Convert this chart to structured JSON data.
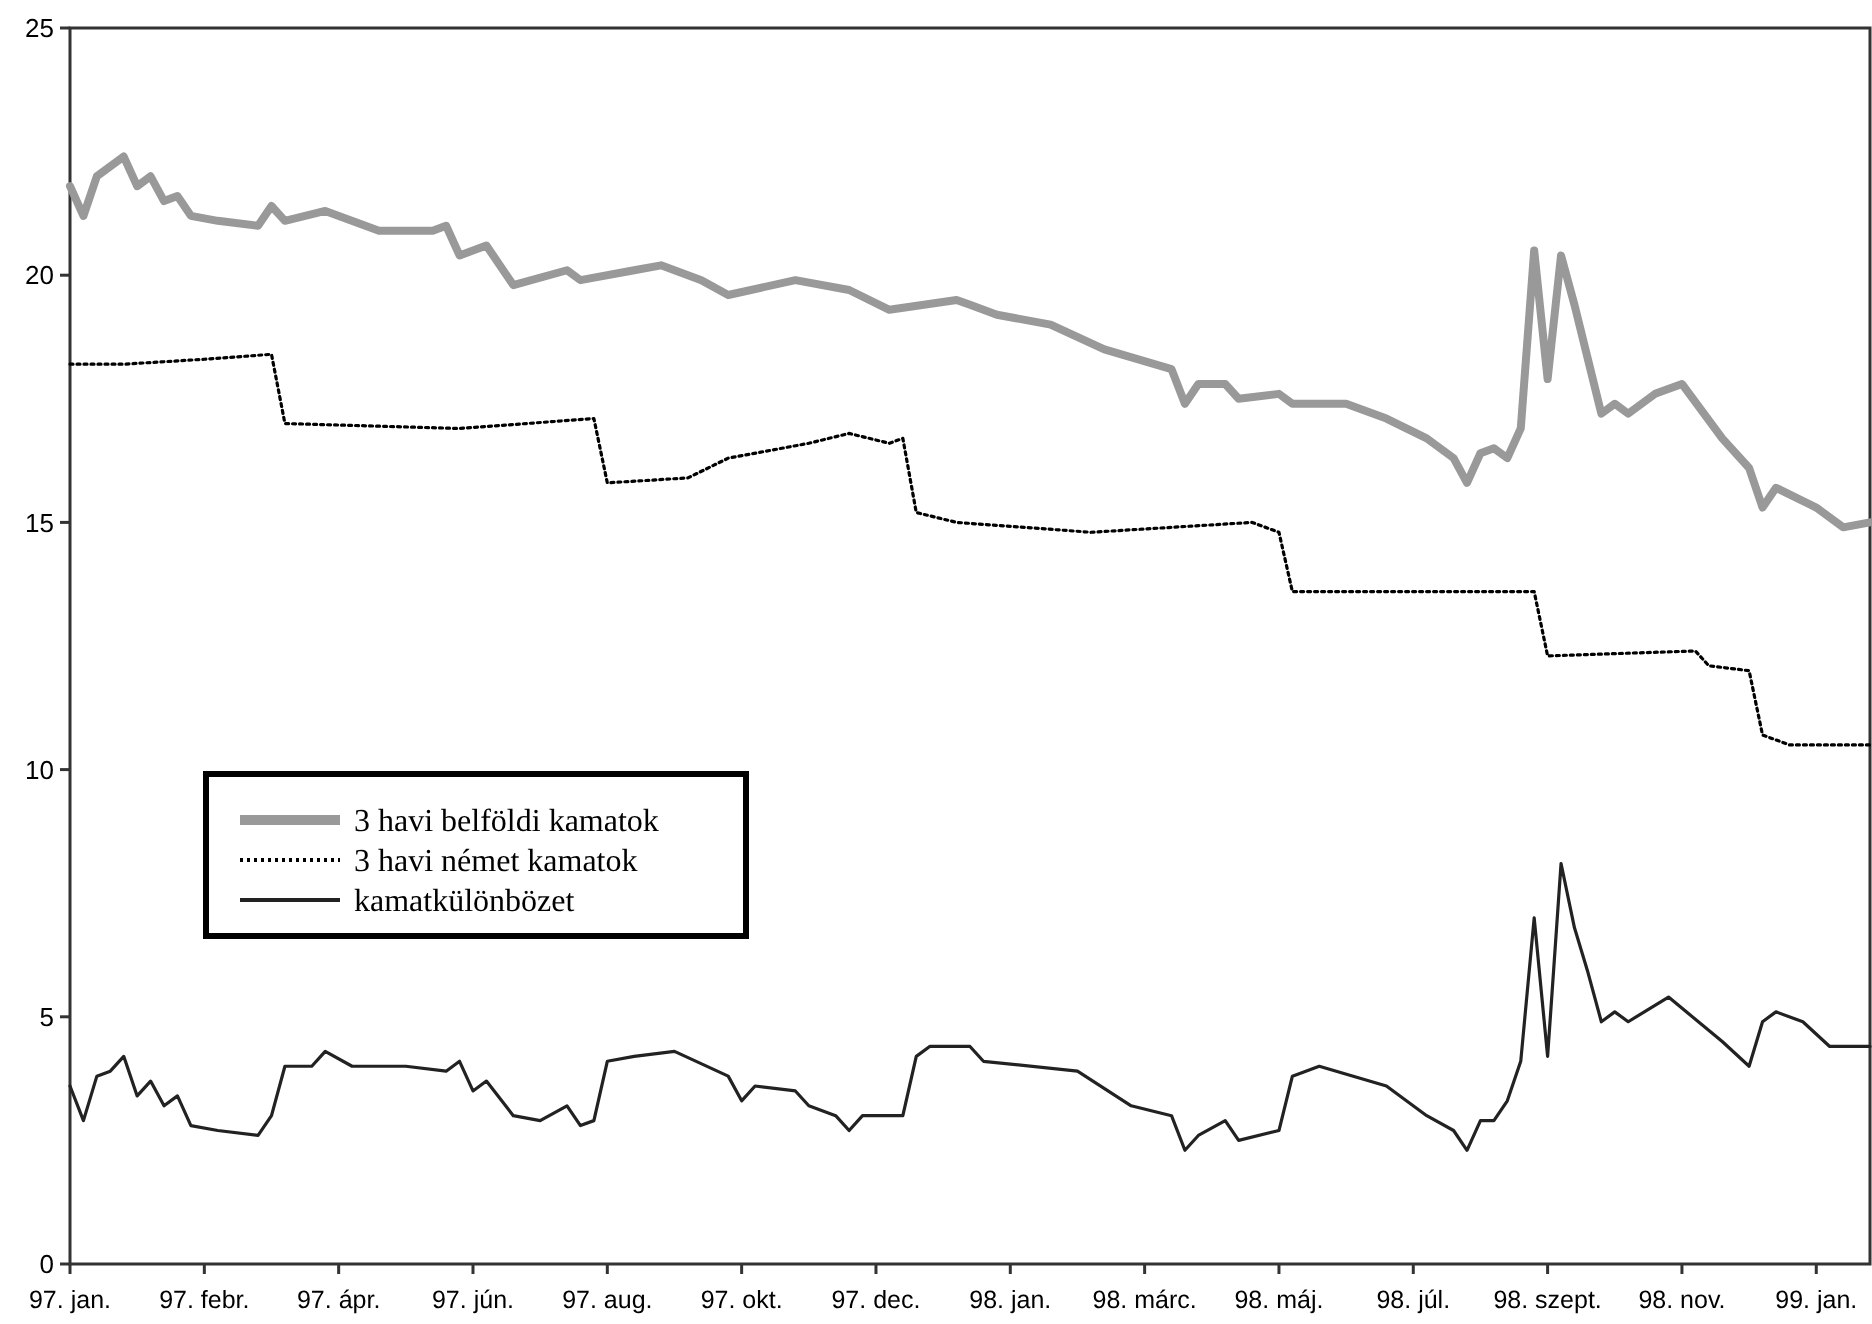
{
  "chart_data": {
    "type": "line",
    "legend": "left",
    "grid": false,
    "ylim": [
      0,
      25
    ],
    "yticks": [
      0,
      5,
      10,
      15,
      20,
      25
    ],
    "categories": [
      "97. jan.",
      null,
      null,
      null,
      null,
      null,
      null,
      null,
      null,
      null,
      "97. febr.",
      null,
      null,
      null,
      null,
      null,
      null,
      null,
      null,
      null,
      "97. ápr.",
      null,
      null,
      null,
      null,
      null,
      null,
      null,
      null,
      null,
      "97. jún.",
      null,
      null,
      null,
      null,
      null,
      null,
      null,
      null,
      null,
      "97. aug.",
      null,
      null,
      null,
      null,
      null,
      null,
      null,
      null,
      null,
      "97. okt.",
      null,
      null,
      null,
      null,
      null,
      null,
      null,
      null,
      null,
      "97. dec.",
      null,
      null,
      null,
      null,
      null,
      null,
      null,
      null,
      null,
      "98. jan.",
      null,
      null,
      null,
      null,
      null,
      null,
      null,
      null,
      null,
      "98. márc.",
      null,
      null,
      null,
      null,
      null,
      null,
      null,
      null,
      null,
      "98. máj.",
      null,
      null,
      null,
      null,
      null,
      null,
      null,
      null,
      null,
      "98. júl.",
      null,
      null,
      null,
      null,
      null,
      null,
      null,
      null,
      null,
      "98. szept.",
      null,
      null,
      null,
      null,
      null,
      null,
      null,
      null,
      null,
      "98. nov.",
      null,
      null,
      null,
      null,
      null,
      null,
      null,
      null,
      null,
      "99. jan.",
      null,
      null,
      null,
      null
    ],
    "series": [
      {
        "name": "3 havi belföldi kamatok",
        "color": "#999999",
        "line_style": "solid",
        "values": [
          21.8,
          21.2,
          22.0,
          null,
          22.4,
          21.8,
          22.0,
          21.5,
          21.6,
          21.2,
          null,
          21.1,
          null,
          null,
          21.0,
          21.4,
          21.1,
          null,
          null,
          21.3,
          null,
          null,
          null,
          20.9,
          null,
          null,
          null,
          20.9,
          21.0,
          20.4,
          null,
          20.6,
          null,
          19.8,
          null,
          null,
          null,
          20.1,
          19.9,
          null,
          null,
          null,
          20.1,
          null,
          20.2,
          null,
          null,
          19.9,
          null,
          19.6,
          null,
          null,
          null,
          null,
          19.9,
          null,
          null,
          null,
          19.7,
          null,
          null,
          19.3,
          null,
          null,
          null,
          null,
          19.5,
          19.4,
          null,
          19.2,
          null,
          null,
          null,
          19.0,
          null,
          null,
          null,
          18.5,
          null,
          null,
          null,
          null,
          18.1,
          17.4,
          17.8,
          null,
          17.8,
          17.5,
          null,
          null,
          17.6,
          17.4,
          null,
          null,
          null,
          17.4,
          null,
          null,
          17.1,
          null,
          null,
          16.7,
          null,
          16.3,
          15.8,
          16.4,
          16.5,
          16.3,
          16.9,
          20.5,
          17.9,
          20.4,
          19.4,
          18.3,
          17.2,
          17.4,
          17.2,
          null,
          17.6,
          null,
          17.8,
          null,
          null,
          16.7,
          null,
          16.1,
          15.3,
          15.7,
          null,
          null,
          15.3,
          null,
          14.9,
          null,
          15.0
        ]
      },
      {
        "name": "3 havi német kamatok",
        "color": "#000000",
        "line_style": "dotted",
        "values": [
          18.2,
          null,
          null,
          null,
          18.2,
          null,
          null,
          null,
          null,
          null,
          18.3,
          null,
          null,
          null,
          null,
          18.4,
          17.0,
          null,
          null,
          null,
          null,
          null,
          null,
          null,
          null,
          null,
          null,
          null,
          null,
          16.9,
          null,
          null,
          null,
          null,
          null,
          null,
          null,
          null,
          null,
          17.1,
          15.8,
          null,
          null,
          null,
          null,
          null,
          15.9,
          null,
          null,
          16.3,
          null,
          null,
          null,
          null,
          null,
          16.6,
          null,
          null,
          16.8,
          null,
          null,
          16.6,
          16.7,
          15.2,
          null,
          null,
          15.0,
          null,
          null,
          null,
          null,
          null,
          null,
          null,
          null,
          null,
          14.8,
          null,
          null,
          null,
          null,
          null,
          null,
          null,
          null,
          null,
          null,
          null,
          15.0,
          null,
          14.8,
          13.6,
          null,
          null,
          null,
          null,
          null,
          null,
          null,
          null,
          null,
          null,
          null,
          null,
          null,
          null,
          null,
          null,
          null,
          13.6,
          12.3,
          null,
          null,
          null,
          null,
          null,
          null,
          null,
          null,
          null,
          null,
          12.4,
          12.1,
          null,
          null,
          12.0,
          10.7,
          null,
          10.5,
          null,
          null,
          null,
          null,
          null,
          10.5
        ]
      },
      {
        "name": "kamatkülönbözet",
        "color": "#222222",
        "line_style": "solid",
        "values": [
          3.6,
          2.9,
          3.8,
          3.9,
          4.2,
          3.4,
          3.7,
          3.2,
          3.4,
          2.8,
          null,
          2.7,
          null,
          null,
          2.6,
          3.0,
          4.0,
          null,
          4.0,
          4.3,
          null,
          4.0,
          null,
          null,
          null,
          4.0,
          null,
          null,
          3.9,
          4.1,
          3.5,
          3.7,
          null,
          3.0,
          null,
          2.9,
          null,
          3.2,
          2.8,
          2.9,
          4.1,
          null,
          4.2,
          null,
          null,
          4.3,
          null,
          null,
          null,
          3.8,
          3.3,
          3.6,
          null,
          null,
          3.5,
          3.2,
          null,
          3.0,
          2.7,
          3.0,
          null,
          null,
          3.0,
          4.2,
          4.4,
          null,
          4.4,
          4.4,
          4.1,
          null,
          null,
          null,
          null,
          null,
          null,
          3.9,
          null,
          null,
          null,
          3.2,
          null,
          null,
          3.0,
          2.3,
          2.6,
          null,
          2.9,
          2.5,
          null,
          null,
          2.7,
          3.8,
          null,
          4.0,
          null,
          null,
          null,
          null,
          3.6,
          null,
          null,
          3.0,
          null,
          2.7,
          2.3,
          2.9,
          2.9,
          3.3,
          4.1,
          7.0,
          4.2,
          8.1,
          6.8,
          5.9,
          4.9,
          5.1,
          4.9,
          null,
          null,
          5.4,
          null,
          null,
          null,
          4.5,
          null,
          4.0,
          4.9,
          5.1,
          null,
          4.9,
          null,
          4.4,
          null,
          null,
          4.4
        ]
      }
    ]
  }
}
